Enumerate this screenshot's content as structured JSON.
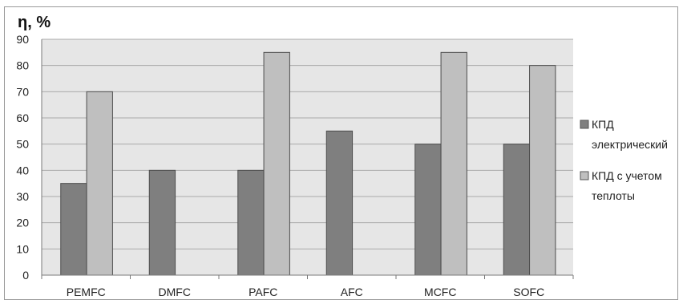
{
  "chart_data": {
    "type": "bar",
    "ylabel": "η, %",
    "categories": [
      "PEMFC",
      "DMFC",
      "PAFC",
      "AFC",
      "MCFC",
      "SOFC"
    ],
    "series": [
      {
        "name": "КПД электрический",
        "values": [
          35,
          40,
          40,
          55,
          50,
          50
        ],
        "color": "#7f7f7f"
      },
      {
        "name": "КПД с учетом теплоты",
        "values": [
          70,
          null,
          85,
          null,
          85,
          80
        ],
        "color": "#bfbfbf"
      }
    ],
    "ylim": [
      0,
      90
    ],
    "yticks": [
      0,
      10,
      20,
      30,
      40,
      50,
      60,
      70,
      80,
      90
    ],
    "grid": true,
    "legend_position": "right",
    "plot_background": "#e6e6e6"
  }
}
